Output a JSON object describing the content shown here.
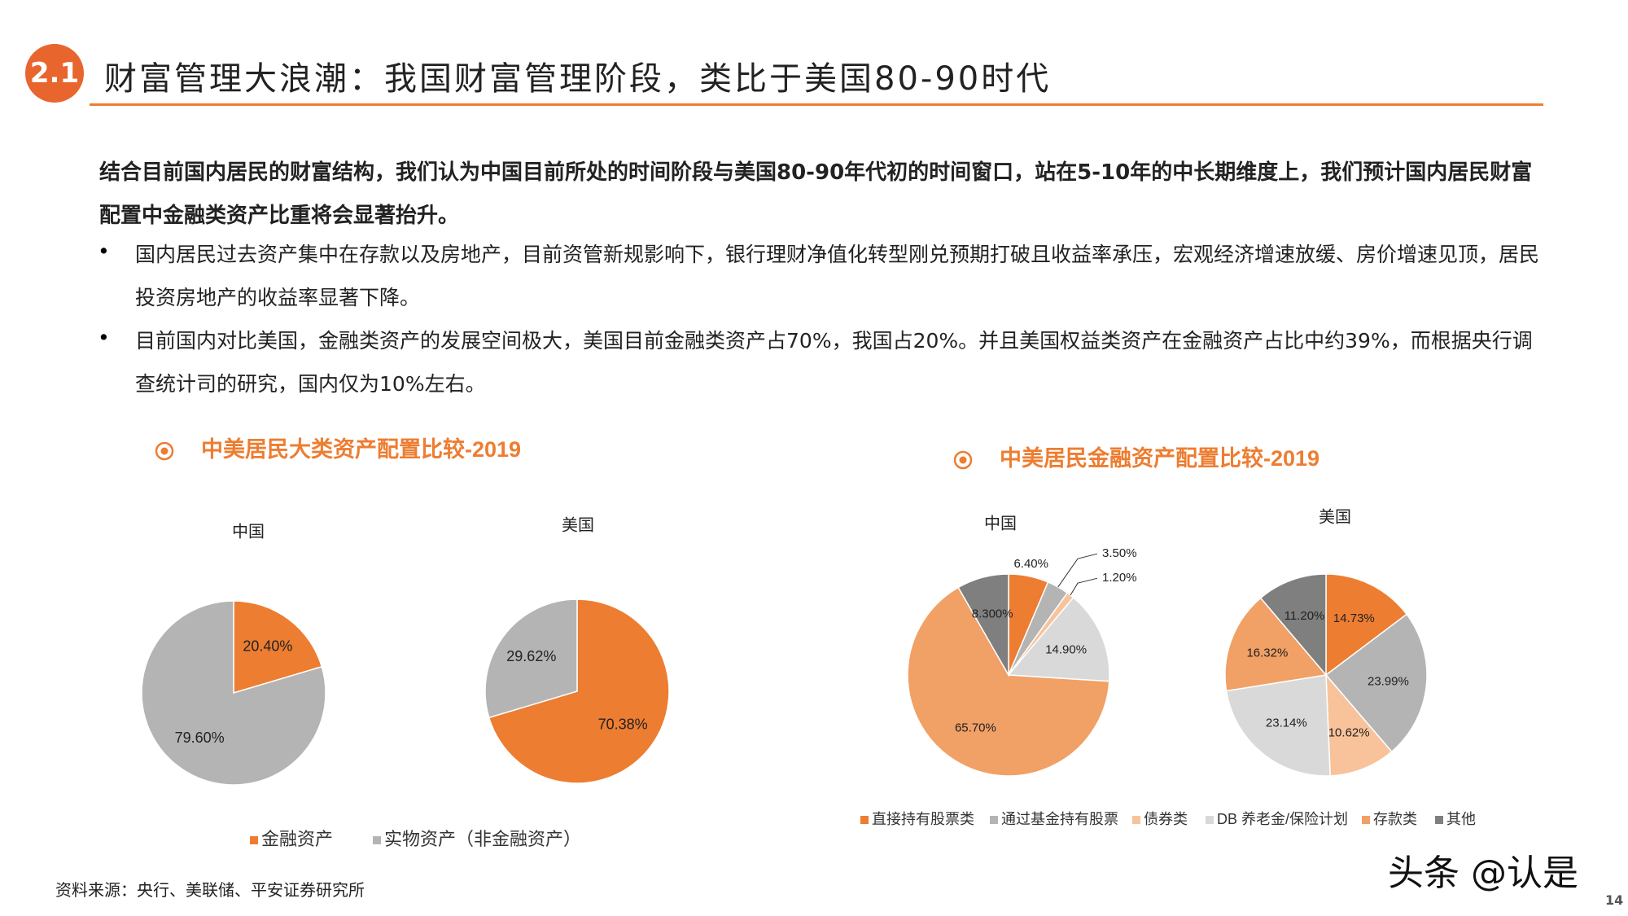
{
  "header": {
    "badge": "2.1",
    "title": "财富管理大浪潮：我国财富管理阶段，类比于美国80-90时代"
  },
  "body": {
    "intro": "结合目前国内居民的财富结构，我们认为中国目前所处的时间阶段与美国80-90年代初的时间窗口，站在5-10年的中长期维度上，我们预计国内居民财富配置中金融类资产比重将会显著抬升。",
    "bullets": [
      "国内居民过去资产集中在存款以及房地产，目前资管新规影响下，银行理财净值化转型刚兑预期打破且收益率承压，宏观经济增速放缓、房价增速见顶，居民投资房地产的收益率显著下降。",
      "目前国内对比美国，金融类资产的发展空间极大，美国目前金融类资产占70%，我国占20%。并且美国权益类资产在金融资产占比中约39%，而根据央行调查统计司的研究，国内仅为10%左右。"
    ]
  },
  "chart_data": [
    {
      "type": "pie",
      "title": "中美居民大类资产配置比较-2019",
      "categories": [
        "金融资产",
        "实物资产（非金融资产）"
      ],
      "colors": [
        "#ed7d31",
        "#b4b4b4"
      ],
      "series": [
        {
          "name": "中国",
          "values": [
            20.4,
            79.6
          ],
          "value_labels": [
            "20.40%",
            "79.60%"
          ]
        },
        {
          "name": "美国",
          "values": [
            70.38,
            29.62
          ],
          "value_labels": [
            "70.38%",
            "29.62%"
          ]
        }
      ]
    },
    {
      "type": "pie",
      "title": "中美居民金融资产配置比较-2019",
      "categories": [
        "直接持有股票类",
        "通过基金持有股票",
        "债券类",
        "DB 养老金/保险计划",
        "存款类",
        "其他"
      ],
      "colors": [
        "#ed7d31",
        "#b4b4b4",
        "#f8c39a",
        "#d9d9d9",
        "#f1a066",
        "#7f7f7f"
      ],
      "series": [
        {
          "name": "中国",
          "values": [
            6.4,
            3.5,
            1.2,
            14.9,
            65.7,
            8.3
          ],
          "value_labels": [
            "6.40%",
            "3.50%",
            "1.20%",
            "14.90%",
            "65.70%",
            "8.300%"
          ]
        },
        {
          "name": "美国",
          "values": [
            14.73,
            23.99,
            10.62,
            23.14,
            16.32,
            11.2
          ],
          "value_labels": [
            "14.73%",
            "23.99%",
            "10.62%",
            "23.14%",
            "16.32%",
            "11.20%"
          ]
        }
      ]
    }
  ],
  "footer": {
    "source": "资料来源：央行、美联储、平安证券研究所",
    "watermark": "头条 @认是",
    "page": "14"
  }
}
